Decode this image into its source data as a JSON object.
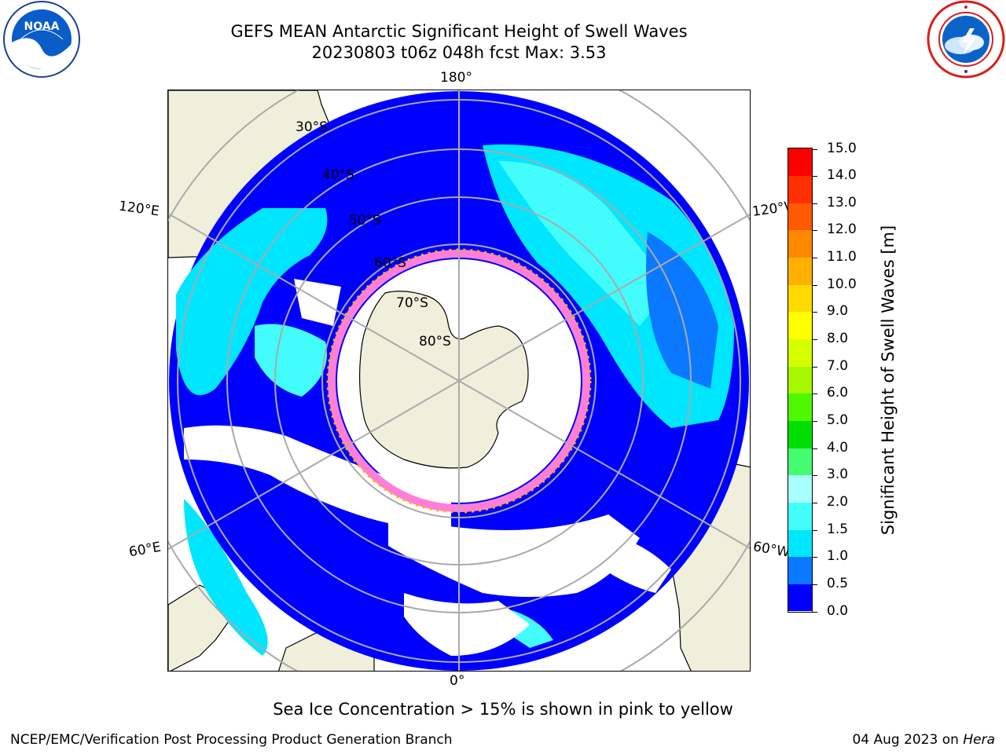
{
  "header": {
    "title_line1": "GEFS MEAN Antarctic Significant Height of Swell Waves",
    "title_line2": "20230803 t06z 048h fcst   Max: 3.53"
  },
  "logos": {
    "left": "noaa-logo",
    "left_text": "NOAA",
    "right": "national-weather-service-logo"
  },
  "map": {
    "projection": "south-polar-stereographic",
    "longitude_labels": {
      "top": "180°",
      "bottom": "0°",
      "left_upper": "120°E",
      "left_lower": "60°E",
      "right_upper": "120°W",
      "right_lower": "60°W"
    },
    "latitude_labels": [
      "30°S",
      "40°S",
      "50°S",
      "60°S",
      "70°S",
      "80°S"
    ],
    "colors": {
      "land": "#efefdc",
      "ocean_no_data": "#ffffff",
      "grid": "#aaaaaa",
      "coast": "#000000"
    }
  },
  "colorbar": {
    "label": "Significant Height of Swell Waves [m]",
    "ticks": [
      "0.0",
      "0.5",
      "1.0",
      "1.5",
      "2.0",
      "3.0",
      "4.0",
      "5.0",
      "6.0",
      "7.0",
      "8.0",
      "9.0",
      "10.0",
      "11.0",
      "12.0",
      "13.0",
      "14.0",
      "15.0"
    ],
    "colors": [
      "#0000ff",
      "#0a78ff",
      "#00e6ff",
      "#43fdfd",
      "#a9fefe",
      "#44fb72",
      "#00df00",
      "#4ff800",
      "#a6f700",
      "#d5fe00",
      "#ffff00",
      "#ffd900",
      "#ffb000",
      "#ff8800",
      "#ff5a00",
      "#ff2f00",
      "#ff0000"
    ]
  },
  "footer": {
    "note": "Sea Ice Concentration > 15% is shown in pink to yellow",
    "credit_left": "NCEP/EMC/Verification Post Processing Product Generation Branch",
    "credit_date": "04 Aug 2023 on ",
    "credit_host": "Hera"
  }
}
